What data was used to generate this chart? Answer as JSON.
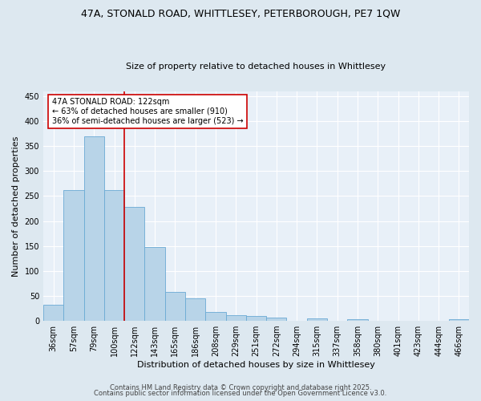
{
  "title1": "47A, STONALD ROAD, WHITTLESEY, PETERBOROUGH, PE7 1QW",
  "title2": "Size of property relative to detached houses in Whittlesey",
  "xlabel": "Distribution of detached houses by size in Whittlesey",
  "ylabel": "Number of detached properties",
  "categories": [
    "36sqm",
    "57sqm",
    "79sqm",
    "100sqm",
    "122sqm",
    "143sqm",
    "165sqm",
    "186sqm",
    "208sqm",
    "229sqm",
    "251sqm",
    "272sqm",
    "294sqm",
    "315sqm",
    "337sqm",
    "358sqm",
    "380sqm",
    "401sqm",
    "423sqm",
    "444sqm",
    "466sqm"
  ],
  "values": [
    32,
    262,
    370,
    262,
    228,
    148,
    58,
    45,
    18,
    11,
    10,
    6,
    0,
    5,
    0,
    3,
    0,
    0,
    0,
    0,
    3
  ],
  "bar_color": "#b8d4e8",
  "bar_edge_color": "#6aaad4",
  "vline_color": "#cc0000",
  "vline_index": 4,
  "annotation_text": "47A STONALD ROAD: 122sqm\n← 63% of detached houses are smaller (910)\n36% of semi-detached houses are larger (523) →",
  "annotation_box_color": "#ffffff",
  "annotation_box_edge": "#cc0000",
  "ylim": [
    0,
    460
  ],
  "yticks": [
    0,
    50,
    100,
    150,
    200,
    250,
    300,
    350,
    400,
    450
  ],
  "footer1": "Contains HM Land Registry data © Crown copyright and database right 2025.",
  "footer2": "Contains public sector information licensed under the Open Government Licence v3.0.",
  "fig_bg_color": "#dde8f0",
  "plot_bg_color": "#e8f0f8",
  "grid_color": "#ffffff",
  "title1_fontsize": 9,
  "title2_fontsize": 8,
  "xlabel_fontsize": 8,
  "ylabel_fontsize": 8,
  "tick_fontsize": 7,
  "footer_fontsize": 6
}
